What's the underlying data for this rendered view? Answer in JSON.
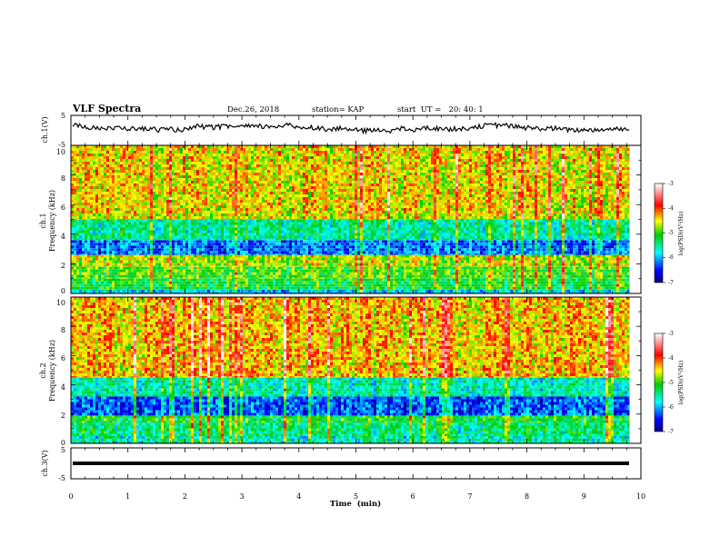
{
  "header": {
    "title": "VLF Spectra",
    "date": "Dec.26, 2018",
    "station": "station= KAP",
    "start_ut": "start  UT =   20: 40: 1"
  },
  "chart_data": {
    "type": "heatmap",
    "x_axis": {
      "label": "Time  (min)",
      "range": [
        0,
        10
      ],
      "ticks": [
        "0",
        "1",
        "2",
        "3",
        "4",
        "5",
        "6",
        "7",
        "8",
        "9",
        "10"
      ]
    },
    "panels": [
      {
        "id": "ch1-waveform",
        "type": "line",
        "ylabel": "ch.1(V)",
        "ylim": [
          -5,
          5
        ],
        "y_ticks": [
          "5",
          "-5"
        ],
        "baseline_v": 1.0,
        "fluctuation_v": 1.6,
        "data_end_min": 9.8
      },
      {
        "id": "ch1-spectrogram",
        "type": "heatmap",
        "ylabel_lines": [
          "ch.1",
          "Frequency  (kHz)"
        ],
        "ylim": [
          0,
          10
        ],
        "y_ticks": [
          "0",
          "2",
          "4",
          "6",
          "8",
          "10"
        ],
        "data_end_min": 9.8,
        "colorbar": {
          "label": "log(PSD)(V²/Hz)",
          "range": [
            -7,
            -3
          ],
          "ticks": [
            "-3",
            "-4",
            "-5",
            "-6",
            "-7"
          ]
        },
        "bands_khz": [
          {
            "from": 0.0,
            "to": 0.25,
            "log_psd": -5.9
          },
          {
            "from": 0.25,
            "to": 1.0,
            "log_psd": -5.2
          },
          {
            "from": 1.0,
            "to": 1.8,
            "log_psd": -5.0
          },
          {
            "from": 1.8,
            "to": 2.6,
            "log_psd": -4.7
          },
          {
            "from": 2.6,
            "to": 3.6,
            "log_psd": -6.2
          },
          {
            "from": 3.6,
            "to": 5.0,
            "log_psd": -5.5
          },
          {
            "from": 5.0,
            "to": 5.4,
            "log_psd": -4.6
          },
          {
            "from": 5.4,
            "to": 10.0,
            "log_psd": -4.5
          }
        ]
      },
      {
        "id": "ch2-spectrogram",
        "type": "heatmap",
        "ylabel_lines": [
          "ch.2",
          "Frequency  (kHz)"
        ],
        "ylim": [
          0,
          10
        ],
        "y_ticks": [
          "0",
          "2",
          "4",
          "6",
          "8",
          "10"
        ],
        "data_end_min": 9.8,
        "colorbar": {
          "label": "log(PSD)(V²/Hz)",
          "range": [
            -7,
            -3
          ],
          "ticks": [
            "-3",
            "-4",
            "-5",
            "-6",
            "-7"
          ]
        },
        "bands_khz": [
          {
            "from": 0.0,
            "to": 0.5,
            "log_psd": -5.6
          },
          {
            "from": 0.5,
            "to": 1.4,
            "log_psd": -5.4
          },
          {
            "from": 1.4,
            "to": 1.9,
            "log_psd": -5.2
          },
          {
            "from": 1.9,
            "to": 3.2,
            "log_psd": -6.3
          },
          {
            "from": 3.2,
            "to": 4.5,
            "log_psd": -5.6
          },
          {
            "from": 4.5,
            "to": 10.0,
            "log_psd": -4.4
          }
        ]
      },
      {
        "id": "ch3-waveform",
        "type": "line",
        "ylabel": "ch.3(V)",
        "ylim": [
          -5,
          5
        ],
        "y_ticks": [
          "5",
          "-5"
        ],
        "baseline_v": 0.0,
        "fluctuation_v": 0.0,
        "data_end_min": 9.8
      }
    ]
  }
}
